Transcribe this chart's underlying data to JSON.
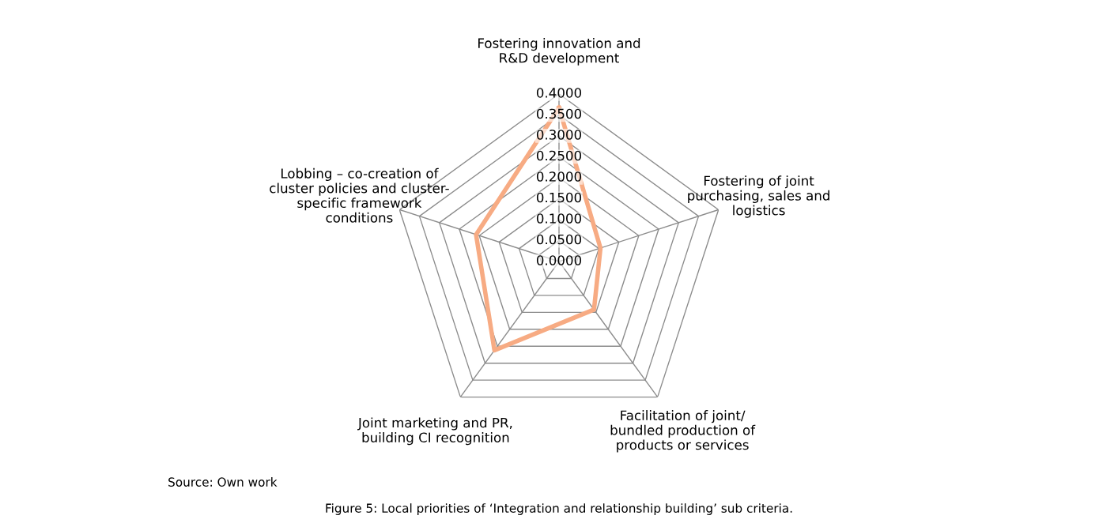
{
  "chart_data": {
    "type": "radar",
    "categories": [
      "Fostering innovation and\nR&D development",
      "Fostering of joint\npurchasing, sales and\nlogistics",
      "Facilitation of joint/\nbundled production of\nproducts or services",
      "Joint marketing and PR,\nbuilding CI recognition",
      "Lobbing – co-creation of\ncluster policies and cluster-\nspecific framework\nconditions"
    ],
    "series": [
      {
        "color": "#f7ab83",
        "values": [
          0.367,
          0.104,
          0.142,
          0.262,
          0.208
        ]
      }
    ],
    "ylim": [
      0,
      0.4
    ],
    "yticks": [
      {
        "value": 0,
        "label": "0.0000"
      },
      {
        "value": 0.05,
        "label": "0.0500"
      },
      {
        "value": 0.1,
        "label": "0.1000"
      },
      {
        "value": 0.15,
        "label": "0.1500"
      },
      {
        "value": 0.2,
        "label": "0.2000"
      },
      {
        "value": 0.25,
        "label": "0.2500"
      },
      {
        "value": 0.3,
        "label": "0.3000"
      },
      {
        "value": 0.35,
        "label": "0.3500"
      },
      {
        "value": 0.4,
        "label": "0.4000"
      }
    ],
    "grid": true,
    "marker": "none",
    "line_style": "solid",
    "annotations": [
      "Source: Own work",
      "Figure 5: Local priorities of ‘Integration and relationship building’ sub criteria."
    ]
  }
}
